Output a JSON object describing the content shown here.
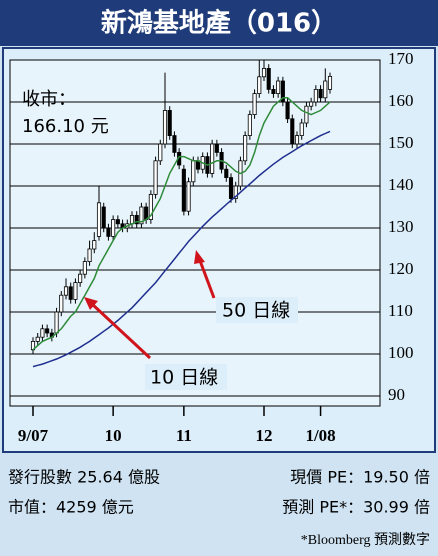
{
  "title": "新鴻基地產（016）",
  "chart_data": {
    "type": "candlestick",
    "categories": [
      "9/07",
      null,
      null,
      null,
      null,
      null,
      null,
      null,
      null,
      null,
      null,
      null,
      null,
      null,
      null,
      null,
      null,
      "10",
      null,
      null,
      null,
      null,
      null,
      null,
      null,
      null,
      null,
      null,
      null,
      null,
      null,
      null,
      "11",
      null,
      null,
      null,
      null,
      null,
      null,
      null,
      null,
      null,
      null,
      null,
      null,
      null,
      null,
      null,
      null,
      "12",
      null,
      null,
      null,
      null,
      null,
      null,
      null,
      null,
      null,
      null,
      null,
      "1/08",
      null,
      null
    ],
    "open": [
      101,
      103,
      104,
      106,
      105,
      105,
      110,
      114,
      116,
      113,
      117,
      119,
      122,
      125,
      128,
      135,
      130,
      128,
      132,
      131,
      130,
      131,
      133,
      131,
      135,
      132,
      138,
      146,
      150,
      158,
      152,
      148,
      144,
      134,
      141,
      146,
      144,
      147,
      143,
      150,
      148,
      144,
      142,
      137,
      140,
      146,
      152,
      157,
      162,
      166,
      168,
      163,
      162,
      165,
      160,
      156,
      150,
      152,
      155,
      159,
      160,
      163,
      161,
      163
    ],
    "high": [
      104,
      105,
      107,
      107,
      106,
      111,
      115,
      118,
      117,
      118,
      120,
      123,
      127,
      129,
      140,
      136,
      131,
      133,
      133,
      132,
      132,
      134,
      134,
      136,
      136,
      139,
      147,
      151,
      167,
      159,
      153,
      149,
      145,
      142,
      147,
      147,
      148,
      148,
      151,
      151,
      149,
      145,
      143,
      141,
      147,
      153,
      158,
      163,
      170,
      170,
      169,
      164,
      166,
      166,
      161,
      157,
      153,
      156,
      160,
      161,
      164,
      164,
      168,
      167
    ],
    "low": [
      100,
      102,
      103,
      104,
      103,
      104,
      109,
      113,
      112,
      112,
      116,
      118,
      121,
      124,
      127,
      129,
      127,
      127,
      130,
      129,
      129,
      130,
      130,
      130,
      131,
      131,
      137,
      145,
      149,
      151,
      147,
      144,
      133,
      133,
      140,
      143,
      143,
      142,
      142,
      147,
      143,
      141,
      136,
      136,
      139,
      145,
      151,
      156,
      161,
      165,
      162,
      161,
      161,
      159,
      155,
      149,
      149,
      151,
      154,
      158,
      159,
      160,
      160,
      162
    ],
    "close": [
      103,
      104,
      106,
      105,
      104,
      110,
      114,
      116,
      113,
      117,
      119,
      122,
      125,
      127,
      136,
      130,
      128,
      132,
      131,
      130,
      131,
      133,
      131,
      135,
      132,
      138,
      146,
      150,
      158,
      152,
      148,
      145,
      134,
      141,
      146,
      144,
      147,
      143,
      150,
      148,
      144,
      142,
      137,
      140,
      146,
      152,
      157,
      162,
      166,
      168,
      163,
      162,
      165,
      160,
      156,
      150,
      152,
      155,
      159,
      160,
      163,
      161,
      165,
      166.1
    ],
    "up_color": "#ffffff",
    "down_color": "#000000",
    "series": [
      {
        "name": "10 日線",
        "color": "#2e8b3a",
        "values": [
          101,
          102,
          103,
          103.5,
          104,
          105,
          106,
          107.5,
          109,
          110,
          112,
          114,
          116,
          118,
          121,
          123,
          125,
          127,
          129,
          130,
          130.5,
          131,
          131.5,
          131.5,
          132,
          133,
          135,
          137,
          140,
          143,
          145,
          147,
          147,
          146.5,
          146,
          146,
          145.5,
          145,
          145.5,
          146,
          146,
          145.5,
          144.5,
          143.5,
          143,
          143.5,
          145,
          148,
          152,
          155,
          157,
          159,
          160,
          161,
          161,
          160,
          159,
          158,
          157.5,
          157,
          157.5,
          158,
          159,
          160
        ]
      },
      {
        "name": "50 日線",
        "color": "#1f2f8f",
        "values": [
          97,
          97.3,
          97.6,
          98,
          98.4,
          98.8,
          99.3,
          99.8,
          100.4,
          101,
          101.6,
          102.3,
          103,
          103.8,
          104.6,
          105.4,
          106.2,
          107.1,
          108,
          109,
          110,
          111,
          112.2,
          113.4,
          114.6,
          115.8,
          117,
          118.4,
          119.8,
          121.2,
          122.6,
          124,
          125.4,
          126.8,
          128,
          129.2,
          130.4,
          131.5,
          132.6,
          133.6,
          134.6,
          135.6,
          136.6,
          137.5,
          138.5,
          139.5,
          140.5,
          141.5,
          142.5,
          143.4,
          144.3,
          145.2,
          146,
          146.8,
          147.5,
          148.2,
          148.9,
          149.6,
          150.2,
          150.8,
          151.4,
          152,
          152.5,
          153
        ]
      }
    ],
    "ylim": [
      90,
      170
    ],
    "yticks": [
      90,
      100,
      110,
      120,
      130,
      140,
      150,
      160,
      170
    ],
    "grid": true,
    "annotations": [
      "收市：",
      "166.10 元"
    ]
  },
  "footer": {
    "shares": "發行股數 25.64 億股",
    "pe": "現價 PE：19.50 倍",
    "market_cap": "市值：4259 億元",
    "forecast_pe": "預測 PE*：30.99 倍",
    "note": "*Bloomberg 預測數字"
  }
}
